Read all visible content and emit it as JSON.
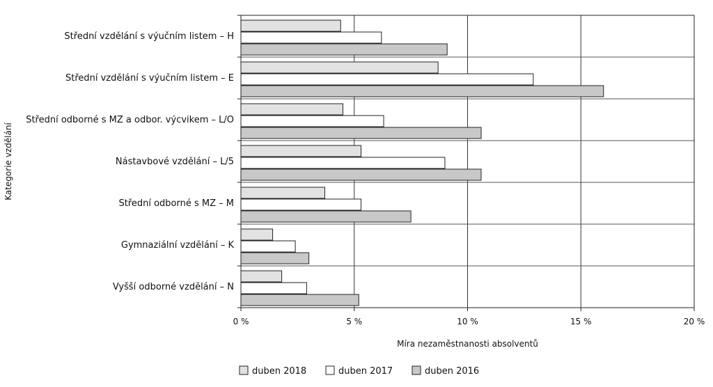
{
  "chart_data": {
    "type": "bar",
    "orientation": "horizontal",
    "title": "",
    "xlabel": "Míra nezaměstnanosti absolventů",
    "ylabel": "Kategorie vzdělání",
    "xlim": [
      0,
      20
    ],
    "x_ticks": [
      0,
      5,
      10,
      15,
      20
    ],
    "x_tick_labels": [
      "0 %",
      "5 %",
      "10 %",
      "15 %",
      "20 %"
    ],
    "grid": "vertical lines at ticks, horizontal separators between categories",
    "legend_position": "bottom",
    "categories": [
      "Střední vzdělání s výučním listem – H",
      "Střední vzdělání s výučním listem – E",
      "Střední odborné s MZ a odbor. výcvikem – L/O",
      "Nástavbové vzdělání – L/5",
      "Střední odborné s MZ – M",
      "Gymnaziální vzdělání – K",
      "Vyšší odborné vzdělání – N"
    ],
    "series": [
      {
        "name": "duben 2018",
        "color": "#e2e2e2",
        "values": [
          4.4,
          8.7,
          4.5,
          5.3,
          3.7,
          1.4,
          1.8
        ]
      },
      {
        "name": "duben 2017",
        "color": "#ffffff",
        "values": [
          6.2,
          12.9,
          6.3,
          9.0,
          5.3,
          2.4,
          2.9
        ]
      },
      {
        "name": "duben 2016",
        "color": "#c8c8c8",
        "values": [
          9.1,
          16.0,
          10.6,
          10.6,
          7.5,
          3.0,
          5.2
        ]
      }
    ]
  }
}
